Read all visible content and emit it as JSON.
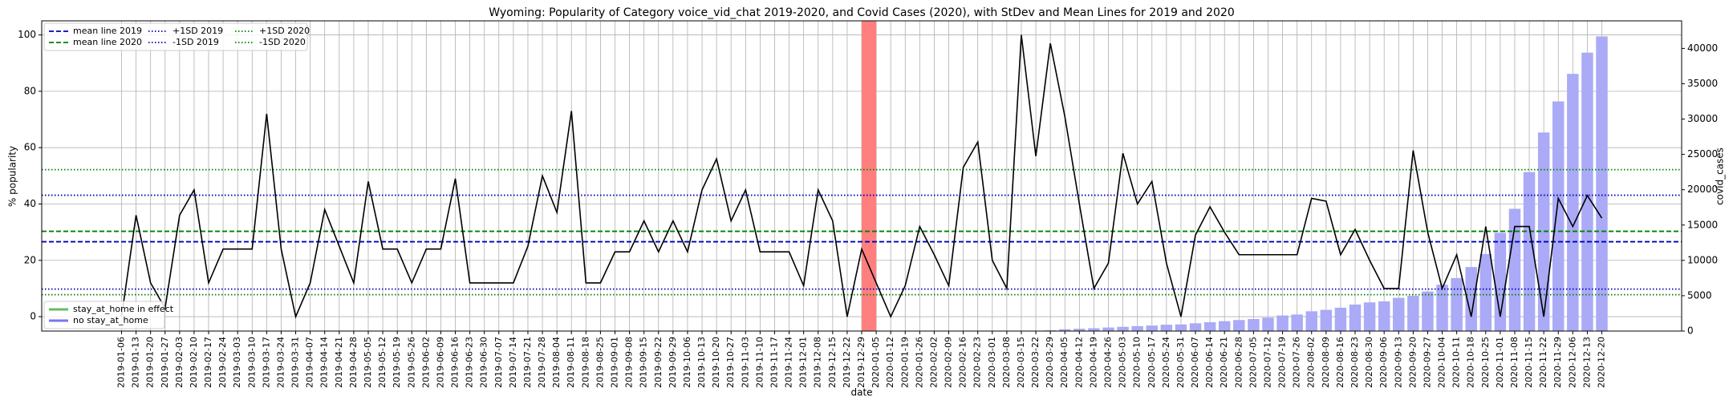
{
  "chart_data": {
    "type": "combo",
    "title": "Wyoming: Popularity of Category voice_vid_chat 2019-2020, and Covid Cases (2020), with StDev and Mean Lines for 2019 and 2020",
    "x_label": "date",
    "y_label": "% popularity",
    "y2_label": "covid_cases",
    "categories": [
      "2019-01-06",
      "2019-01-13",
      "2019-01-20",
      "2019-01-27",
      "2019-02-03",
      "2019-02-10",
      "2019-02-17",
      "2019-02-24",
      "2019-03-03",
      "2019-03-10",
      "2019-03-17",
      "2019-03-24",
      "2019-03-31",
      "2019-04-07",
      "2019-04-14",
      "2019-04-21",
      "2019-04-28",
      "2019-05-05",
      "2019-05-12",
      "2019-05-19",
      "2019-05-26",
      "2019-06-02",
      "2019-06-09",
      "2019-06-16",
      "2019-06-23",
      "2019-06-30",
      "2019-07-07",
      "2019-07-14",
      "2019-07-21",
      "2019-07-28",
      "2019-08-04",
      "2019-08-11",
      "2019-08-18",
      "2019-08-25",
      "2019-09-01",
      "2019-09-08",
      "2019-09-15",
      "2019-09-22",
      "2019-09-29",
      "2019-10-06",
      "2019-10-13",
      "2019-10-20",
      "2019-10-27",
      "2019-11-03",
      "2019-11-10",
      "2019-11-17",
      "2019-11-24",
      "2019-12-01",
      "2019-12-08",
      "2019-12-15",
      "2019-12-22",
      "2019-12-29",
      "2020-01-05",
      "2020-01-12",
      "2020-01-19",
      "2020-01-26",
      "2020-02-02",
      "2020-02-09",
      "2020-02-16",
      "2020-02-23",
      "2020-03-01",
      "2020-03-08",
      "2020-03-15",
      "2020-03-22",
      "2020-03-29",
      "2020-04-05",
      "2020-04-12",
      "2020-04-19",
      "2020-04-26",
      "2020-05-03",
      "2020-05-10",
      "2020-05-17",
      "2020-05-24",
      "2020-05-31",
      "2020-06-07",
      "2020-06-14",
      "2020-06-21",
      "2020-06-28",
      "2020-07-05",
      "2020-07-12",
      "2020-07-19",
      "2020-07-26",
      "2020-08-02",
      "2020-08-09",
      "2020-08-16",
      "2020-08-23",
      "2020-08-30",
      "2020-09-06",
      "2020-09-13",
      "2020-09-20",
      "2020-09-27",
      "2020-10-04",
      "2020-10-11",
      "2020-10-18",
      "2020-10-25",
      "2020-11-01",
      "2020-11-08",
      "2020-11-15",
      "2020-11-22",
      "2020-11-29",
      "2020-12-06",
      "2020-12-13",
      "2020-12-20"
    ],
    "line": {
      "color": "#000000",
      "values": [
        0,
        36,
        12,
        3,
        36,
        45,
        12,
        24,
        24,
        24,
        72,
        24,
        0,
        12,
        38,
        25,
        12,
        48,
        24,
        24,
        12,
        24,
        24,
        49,
        12,
        12,
        12,
        12,
        25,
        50,
        37,
        73,
        12,
        12,
        23,
        23,
        34,
        23,
        34,
        23,
        45,
        56,
        34,
        45,
        23,
        23,
        23,
        11,
        45,
        34,
        0,
        24,
        12,
        0,
        11,
        32,
        22,
        11,
        53,
        62,
        20,
        10,
        100,
        57,
        97,
        71,
        40,
        10,
        19,
        58,
        40,
        48,
        19,
        0,
        29,
        39,
        30,
        22,
        22,
        22,
        22,
        22,
        42,
        41,
        22,
        31,
        20,
        10,
        10,
        59,
        30,
        10,
        22,
        0,
        32,
        0,
        32,
        32,
        0,
        42,
        32,
        43,
        35
      ]
    },
    "bars": {
      "color": "#aaaaf6",
      "axis": "y2",
      "values": [
        null,
        null,
        null,
        null,
        null,
        null,
        null,
        null,
        null,
        null,
        null,
        null,
        null,
        null,
        null,
        null,
        null,
        null,
        null,
        null,
        null,
        null,
        null,
        null,
        null,
        null,
        null,
        null,
        null,
        null,
        null,
        null,
        null,
        null,
        null,
        null,
        null,
        null,
        null,
        null,
        null,
        null,
        null,
        null,
        null,
        null,
        null,
        null,
        null,
        null,
        null,
        null,
        null,
        null,
        null,
        null,
        null,
        null,
        null,
        null,
        null,
        null,
        3,
        26,
        100,
        260,
        330,
        400,
        500,
        600,
        700,
        780,
        900,
        940,
        1100,
        1250,
        1400,
        1560,
        1700,
        1900,
        2200,
        2340,
        2800,
        3000,
        3300,
        3750,
        4060,
        4200,
        4700,
        5000,
        5600,
        6560,
        7500,
        9060,
        10900,
        13900,
        17300,
        22500,
        28100,
        32500,
        36400,
        39400,
        41700
      ]
    },
    "reference_lines": [
      {
        "name": "mean line 2019",
        "value": 26.6,
        "color": "#0000bb",
        "style": "dashed"
      },
      {
        "name": "mean line 2020",
        "value": 30.3,
        "color": "#008000",
        "style": "dashed"
      },
      {
        "name": "+1SD 2019",
        "value": 43.1,
        "color": "#0000bb",
        "style": "dotted"
      },
      {
        "name": "-1SD 2019",
        "value": 9.8,
        "color": "#0000bb",
        "style": "dotted"
      },
      {
        "name": "+1SD 2020",
        "value": 52.2,
        "color": "#008000",
        "style": "dotted"
      },
      {
        "name": "-1SD 2020",
        "value": 7.8,
        "color": "#008000",
        "style": "dotted"
      }
    ],
    "span": {
      "start": "2019-12-29",
      "end": "2020-01-05",
      "color": "#ff7f7f"
    },
    "bar_legend": [
      {
        "name": "stay_at_home in effect",
        "color": "#66bb66"
      },
      {
        "name": "no stay_at_home",
        "color": "#7777ee"
      }
    ],
    "legend_loc": "upper left",
    "bar_legend_loc": "lower left",
    "ylim": [
      -5.1,
      105
    ],
    "yticks": [
      0,
      20,
      40,
      60,
      80,
      100
    ],
    "y2lim": [
      0,
      43900
    ],
    "y2ticks": [
      0,
      5000,
      10000,
      15000,
      20000,
      25000,
      30000,
      35000,
      40000
    ],
    "grid": true
  }
}
